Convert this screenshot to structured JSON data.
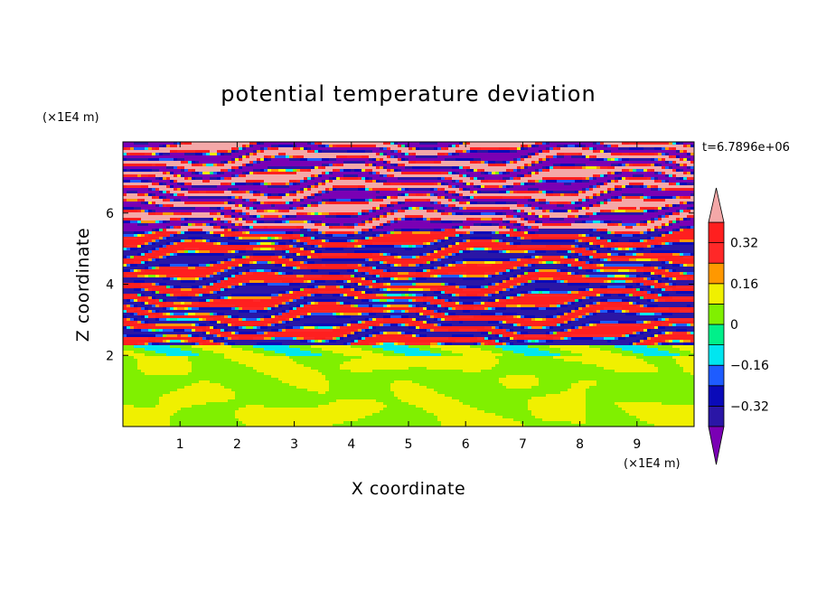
{
  "chart_data": {
    "type": "heatmap",
    "title": "potential temperature deviation",
    "xlabel": "X coordinate",
    "ylabel": "Z coordinate",
    "x_unit": "(×1E4 m)",
    "y_unit": "(×1E4 m)",
    "time_label": "t=6.7896e+06",
    "xlim": [
      0,
      10
    ],
    "ylim": [
      0,
      8
    ],
    "x_ticks": [
      "1",
      "2",
      "3",
      "4",
      "5",
      "6",
      "7",
      "8",
      "9"
    ],
    "y_ticks": [
      "2",
      "4",
      "6"
    ],
    "colorbar": {
      "ticks": [
        "0.32",
        "0.16",
        "0",
        "-0.16",
        "-0.32"
      ],
      "levels": [
        -0.4,
        -0.32,
        -0.24,
        -0.16,
        -0.08,
        0,
        0.08,
        0.16,
        0.24,
        0.32,
        0.4
      ],
      "colors": [
        "#7a00b4",
        "#2a16a6",
        "#0a0ab9",
        "#1e5cff",
        "#00e6f0",
        "#00f08a",
        "#80f000",
        "#f0f000",
        "#ff9800",
        "#ff2828",
        "#ff1f1f",
        "#f4a8a8"
      ],
      "extend": "both"
    },
    "field_description_bands": [
      {
        "z_range": [
          0,
          2
        ],
        "dominant": [
          "0",
          "0.08"
        ]
      },
      {
        "z_range": [
          2,
          2.3
        ],
        "dominant": [
          "-0.08",
          "0"
        ]
      },
      {
        "z_range": [
          2.3,
          8
        ],
        "dominant": [
          "-0.4",
          "0.4"
        ]
      }
    ]
  }
}
